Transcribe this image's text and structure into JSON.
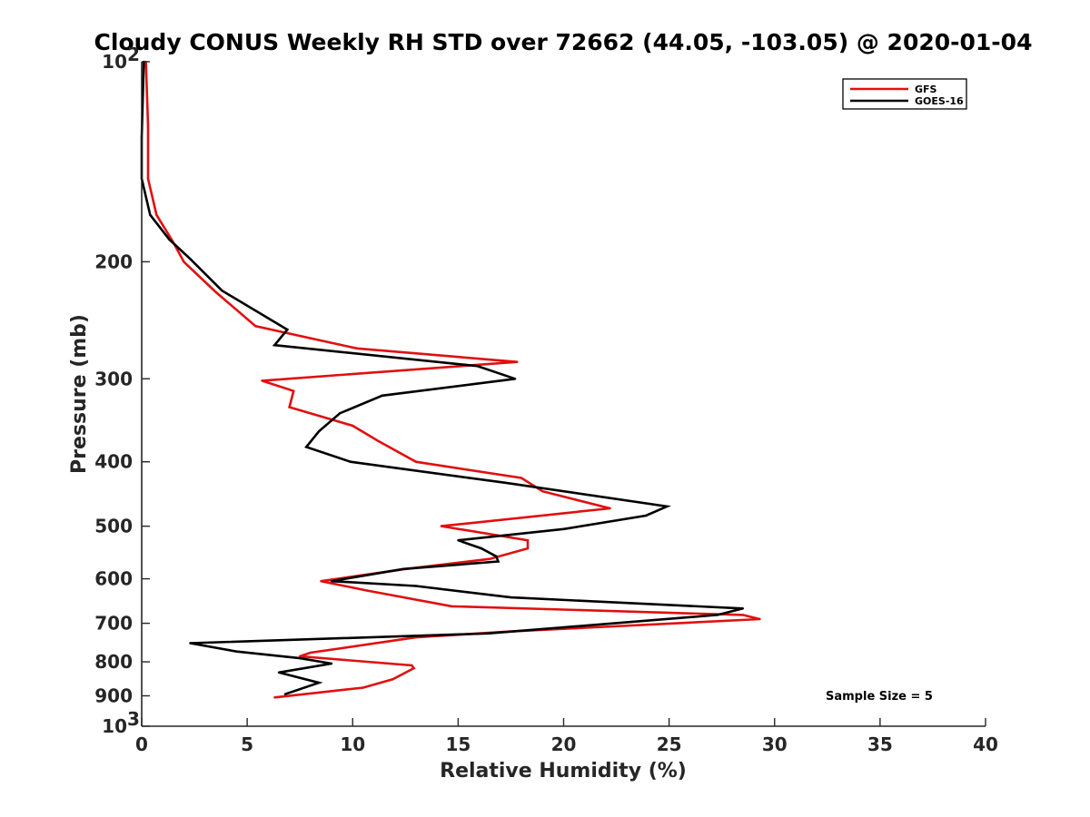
{
  "chart_data": {
    "type": "line",
    "title": "Cloudy CONUS Weekly RH STD over 72662 (44.05, -103.05) @ 2020-01-04",
    "xlabel": "Relative Humidity (%)",
    "ylabel": "Pressure (mb)",
    "xlim": [
      0,
      40
    ],
    "ylim": [
      100,
      1000
    ],
    "y_scale": "log",
    "y_reversed": true,
    "x_ticks": [
      "0",
      "5",
      "10",
      "15",
      "20",
      "25",
      "30",
      "35",
      "40"
    ],
    "y_ticks": [
      {
        "value": 100,
        "label": "10",
        "sup": "2"
      },
      {
        "value": 200,
        "label": "200"
      },
      {
        "value": 300,
        "label": "300"
      },
      {
        "value": 400,
        "label": "400"
      },
      {
        "value": 500,
        "label": "500"
      },
      {
        "value": 600,
        "label": "600"
      },
      {
        "value": 700,
        "label": "700"
      },
      {
        "value": 800,
        "label": "800"
      },
      {
        "value": 900,
        "label": "900"
      },
      {
        "value": 1000,
        "label": "10",
        "sup": "3"
      }
    ],
    "grid": false,
    "legend_position": "top-right",
    "annotation": "Sample Size = 5",
    "series": [
      {
        "name": "GFS",
        "color": "#e01010",
        "points": [
          [
            0.2,
            100
          ],
          [
            0.3,
            125
          ],
          [
            0.3,
            150
          ],
          [
            0.7,
            170
          ],
          [
            1.5,
            187
          ],
          [
            2.0,
            200
          ],
          [
            3.5,
            222
          ],
          [
            5.4,
            250
          ],
          [
            10.2,
            270
          ],
          [
            17.8,
            283
          ],
          [
            5.7,
            302
          ],
          [
            7.2,
            313
          ],
          [
            7.0,
            331
          ],
          [
            10.0,
            353
          ],
          [
            11.2,
            372
          ],
          [
            13.0,
            400
          ],
          [
            18.0,
            423
          ],
          [
            19.0,
            443
          ],
          [
            22.2,
            470
          ],
          [
            14.2,
            500
          ],
          [
            18.3,
            525
          ],
          [
            18.3,
            540
          ],
          [
            16.5,
            560
          ],
          [
            12.5,
            580
          ],
          [
            8.5,
            605
          ],
          [
            10.7,
            625
          ],
          [
            14.7,
            660
          ],
          [
            28.5,
            680
          ],
          [
            29.3,
            690
          ],
          [
            17.5,
            720
          ],
          [
            13.0,
            735
          ],
          [
            8.0,
            775
          ],
          [
            7.5,
            785
          ],
          [
            12.8,
            810
          ],
          [
            12.9,
            818
          ],
          [
            11.9,
            850
          ],
          [
            10.5,
            875
          ],
          [
            6.3,
            905
          ]
        ]
      },
      {
        "name": "GOES-16",
        "color": "#000000",
        "points": [
          [
            0.1,
            100
          ],
          [
            0.0,
            130
          ],
          [
            0.0,
            150
          ],
          [
            0.4,
            170
          ],
          [
            1.3,
            185
          ],
          [
            2.3,
            198
          ],
          [
            3.8,
            221
          ],
          [
            6.9,
            253
          ],
          [
            6.3,
            267
          ],
          [
            15.9,
            287
          ],
          [
            17.7,
            300
          ],
          [
            11.4,
            318
          ],
          [
            9.4,
            338
          ],
          [
            8.4,
            360
          ],
          [
            7.8,
            380
          ],
          [
            9.9,
            400
          ],
          [
            17.2,
            430
          ],
          [
            24.9,
            467
          ],
          [
            23.9,
            482
          ],
          [
            20.0,
            505
          ],
          [
            15.0,
            525
          ],
          [
            16.1,
            540
          ],
          [
            16.8,
            555
          ],
          [
            16.9,
            565
          ],
          [
            12.4,
            580
          ],
          [
            9.0,
            605
          ],
          [
            13.0,
            615
          ],
          [
            17.5,
            640
          ],
          [
            28.5,
            665
          ],
          [
            27.3,
            680
          ],
          [
            16.4,
            725
          ],
          [
            2.3,
            750
          ],
          [
            4.5,
            772
          ],
          [
            7.5,
            790
          ],
          [
            9.0,
            805
          ],
          [
            6.5,
            830
          ],
          [
            8.4,
            860
          ],
          [
            6.8,
            895
          ]
        ]
      }
    ]
  }
}
